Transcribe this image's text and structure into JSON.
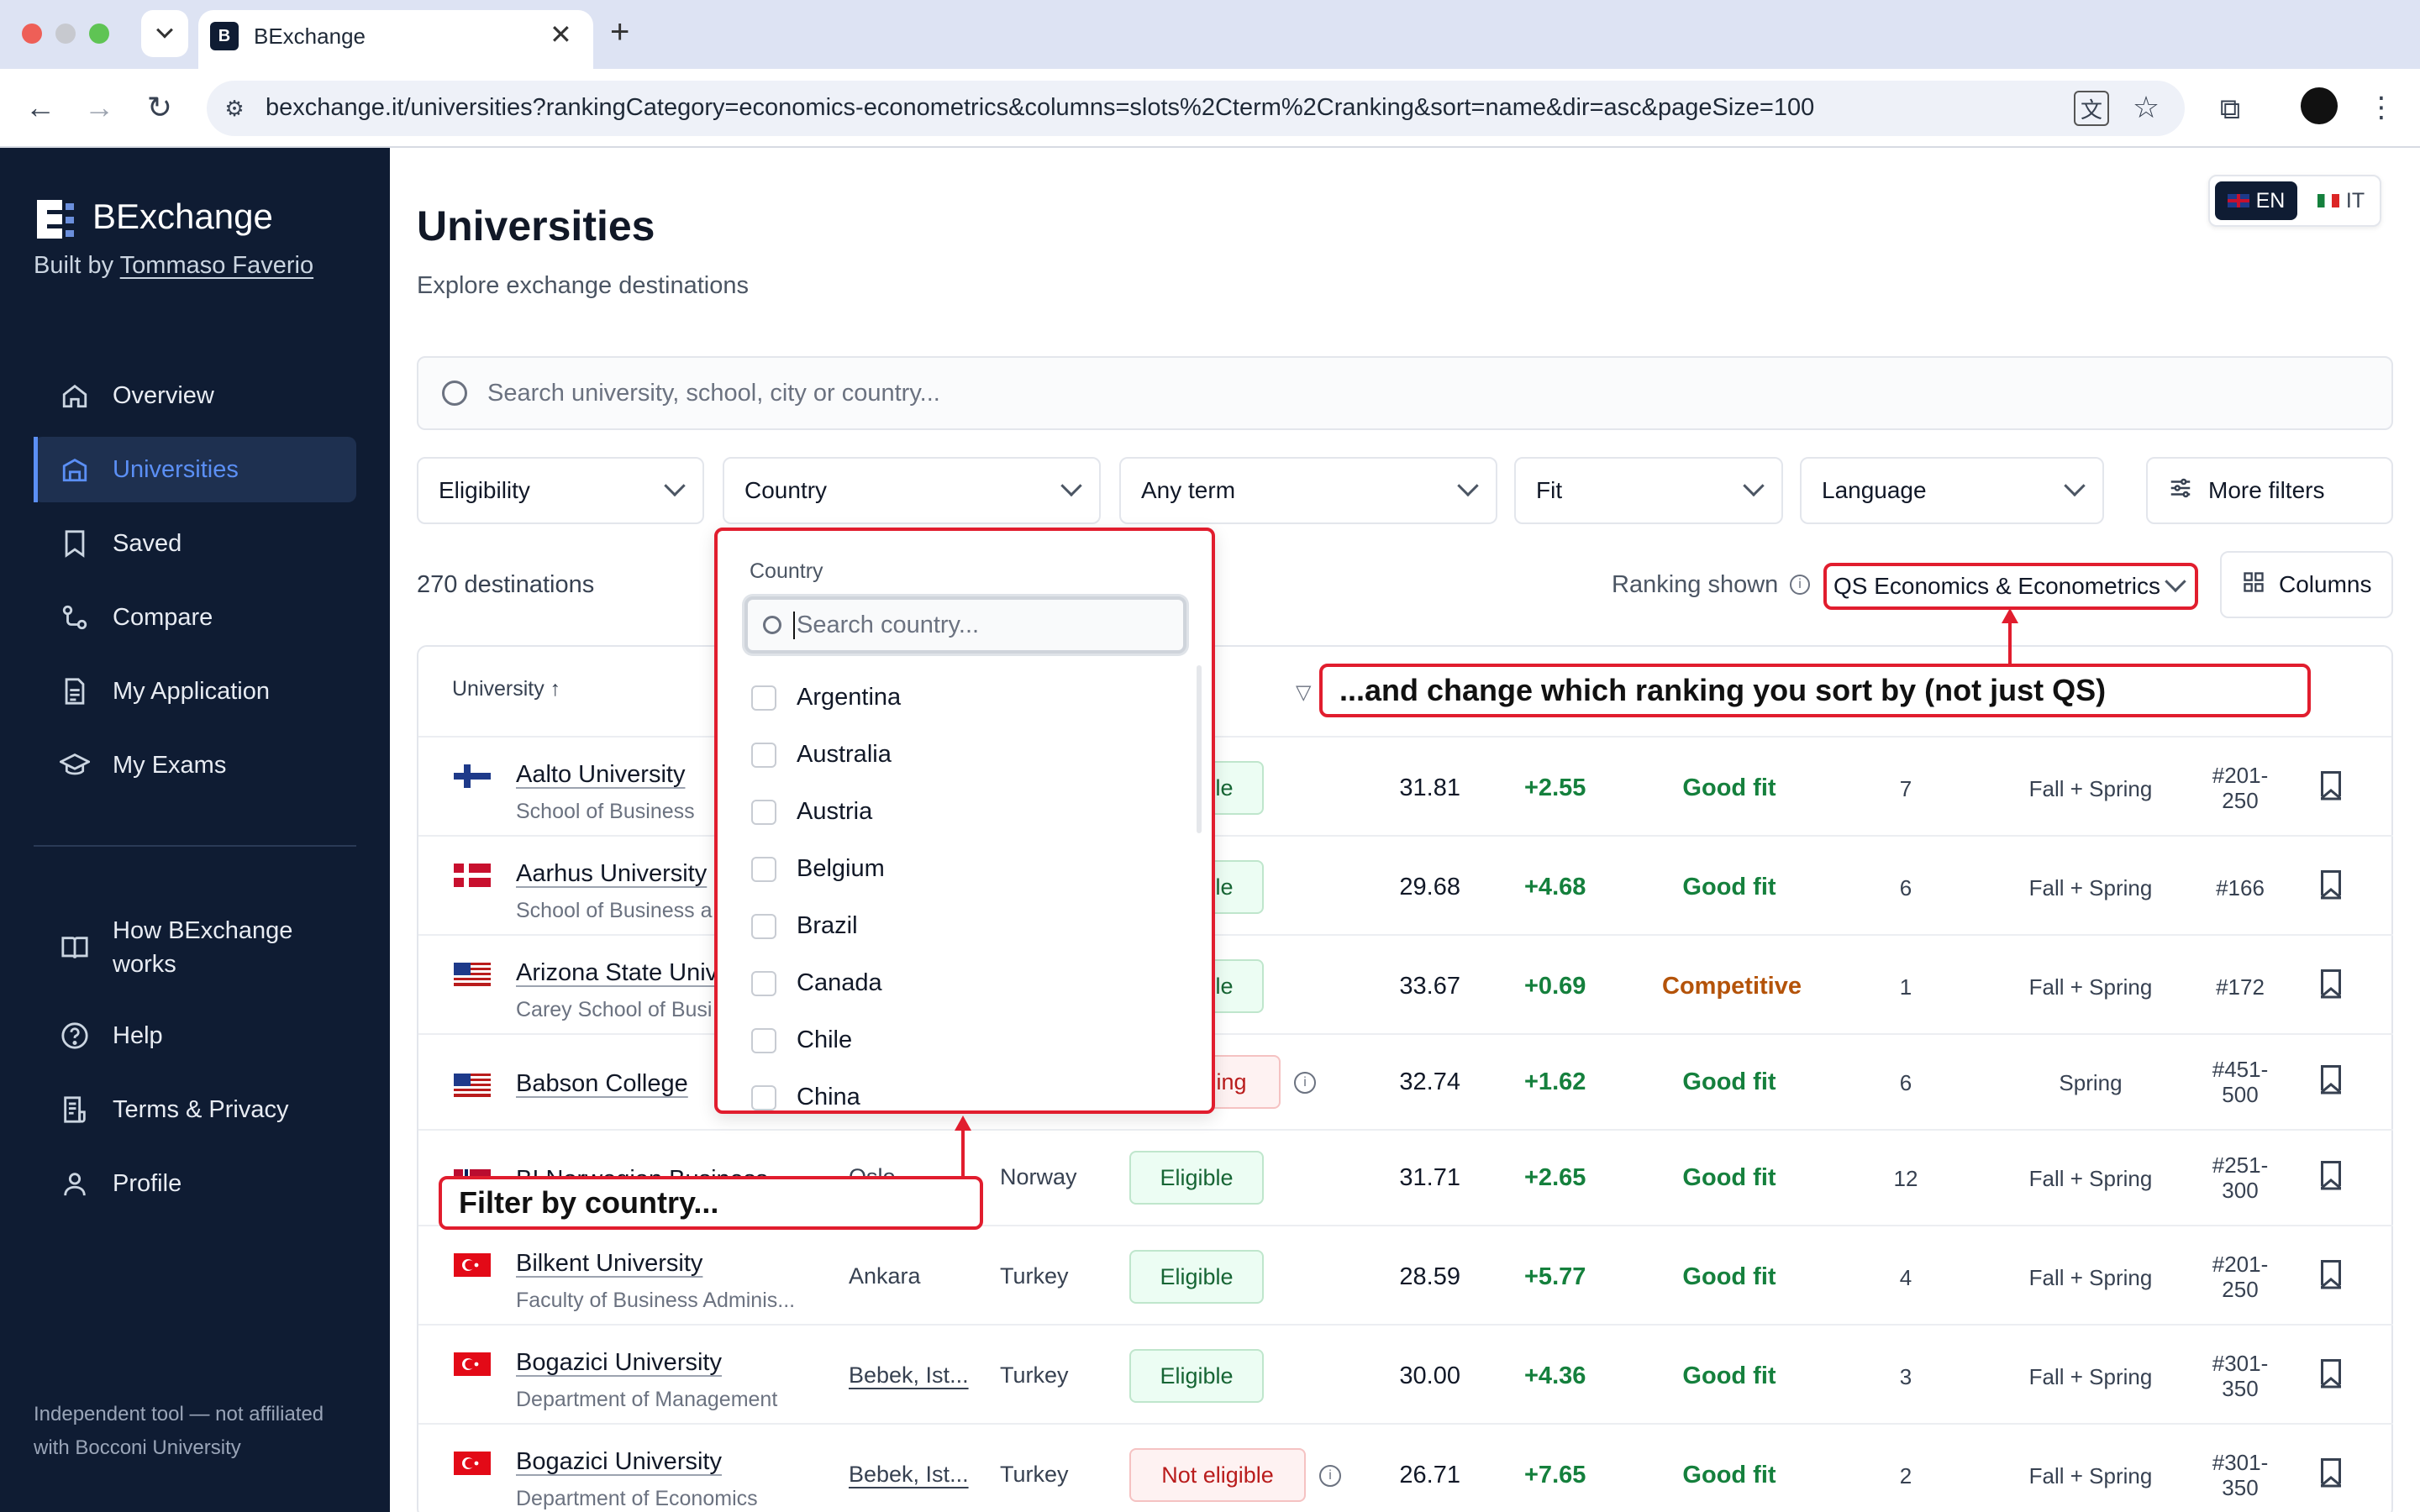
{
  "browser": {
    "tab_title": "BExchange",
    "url": "bexchange.it/universities?rankingCategory=economics-econometrics&columns=slots%2Cterm%2Cranking&sort=name&dir=asc&pageSize=100"
  },
  "sidebar": {
    "brand": "BExchange",
    "built_by_prefix": "Built by",
    "built_by_name": "Tommaso Faverio",
    "items": [
      {
        "label": "Overview",
        "icon": "home-icon"
      },
      {
        "label": "Universities",
        "icon": "university-icon"
      },
      {
        "label": "Saved",
        "icon": "bookmark-icon"
      },
      {
        "label": "Compare",
        "icon": "compare-icon"
      },
      {
        "label": "My Application",
        "icon": "document-icon"
      },
      {
        "label": "My Exams",
        "icon": "graduation-cap-icon"
      }
    ],
    "secondary": [
      {
        "label_line1": "How BExchange",
        "label_line2": "works",
        "icon": "book-icon"
      },
      {
        "label": "Help",
        "icon": "help-icon"
      },
      {
        "label": "Terms & Privacy",
        "icon": "terms-icon"
      },
      {
        "label": "Profile",
        "icon": "user-icon"
      }
    ],
    "footer_line1": "Independent tool — not affiliated",
    "footer_line2": "with Bocconi University"
  },
  "lang": {
    "en": "EN",
    "it": "IT"
  },
  "page": {
    "title": "Universities",
    "subtitle": "Explore exchange destinations",
    "search_placeholder": "Search university, school, city or country...",
    "filters": {
      "eligibility": "Eligibility",
      "country": "Country",
      "term": "Any term",
      "fit": "Fit",
      "language": "Language",
      "more": "More filters"
    },
    "count": "270 destinations",
    "ranking_label": "Ranking shown",
    "ranking_value": "QS Economics & Econometrics",
    "columns_btn": "Columns",
    "table_header_university": "University ↑"
  },
  "rows": [
    {
      "name": "Aalto University",
      "sub": "School of Business",
      "city": "",
      "country": "",
      "eligibility": "Eligible",
      "score": "31.81",
      "delta": "+2.55",
      "fit": "Good fit",
      "slots": "7",
      "term": "Fall + Spring",
      "rank1": "#201-",
      "rank2": "250",
      "flag": "fi"
    },
    {
      "name": "Aarhus University",
      "sub": "School of Business a",
      "city": "",
      "country": "",
      "eligibility": "Eligible",
      "score": "29.68",
      "delta": "+4.68",
      "fit": "Good fit",
      "slots": "6",
      "term": "Fall + Spring",
      "rank1": "#166",
      "rank2": "",
      "flag": "dk"
    },
    {
      "name": "Arizona State Univ",
      "sub": "Carey School of Busi",
      "city": "",
      "country": "",
      "eligibility": "Eligible",
      "score": "33.67",
      "delta": "+0.69",
      "fit": "Competitive",
      "slots": "1",
      "term": "Fall + Spring",
      "rank1": "#172",
      "rank2": "",
      "flag": "us"
    },
    {
      "name": "Babson College",
      "sub": "",
      "city": "",
      "country": "",
      "eligibility": "Pending",
      "score": "32.74",
      "delta": "+1.62",
      "fit": "Good fit",
      "slots": "6",
      "term": "Spring",
      "rank1": "#451-",
      "rank2": "500",
      "flag": "us"
    },
    {
      "name": "BI Norwegian Business ...",
      "sub": "",
      "city": "Oslo",
      "country": "Norway",
      "eligibility": "Eligible",
      "score": "31.71",
      "delta": "+2.65",
      "fit": "Good fit",
      "slots": "12",
      "term": "Fall + Spring",
      "rank1": "#251-",
      "rank2": "300",
      "flag": "no"
    },
    {
      "name": "Bilkent University",
      "sub": "Faculty of Business Adminis...",
      "city": "Ankara",
      "country": "Turkey",
      "eligibility": "Eligible",
      "score": "28.59",
      "delta": "+5.77",
      "fit": "Good fit",
      "slots": "4",
      "term": "Fall + Spring",
      "rank1": "#201-",
      "rank2": "250",
      "flag": "tr"
    },
    {
      "name": "Bogazici University",
      "sub": "Department of Management",
      "city": "Bebek, Ist...",
      "country": "Turkey",
      "eligibility": "Eligible",
      "score": "30.00",
      "delta": "+4.36",
      "fit": "Good fit",
      "slots": "3",
      "term": "Fall + Spring",
      "rank1": "#301-",
      "rank2": "350",
      "flag": "tr"
    },
    {
      "name": "Bogazici University",
      "sub": "Department of Economics",
      "city": "Bebek, Ist...",
      "country": "Turkey",
      "eligibility": "Not eligible",
      "score": "26.71",
      "delta": "+7.65",
      "fit": "Good fit",
      "slots": "2",
      "term": "Fall + Spring",
      "rank1": "#301-",
      "rank2": "350",
      "flag": "tr"
    }
  ],
  "country_dropdown": {
    "title": "Country",
    "search_placeholder": "Search country...",
    "options": [
      "Argentina",
      "Australia",
      "Austria",
      "Belgium",
      "Brazil",
      "Canada",
      "Chile",
      "China"
    ]
  },
  "callouts": {
    "ranking": "...and change which ranking you sort by (not just QS)",
    "country": "Filter by country..."
  },
  "colors": {
    "sidebar": "#0f1c33",
    "accent": "#5b8ff5",
    "annotation_red": "#e11d2e",
    "good": "#15803d",
    "competitive": "#b45309"
  }
}
